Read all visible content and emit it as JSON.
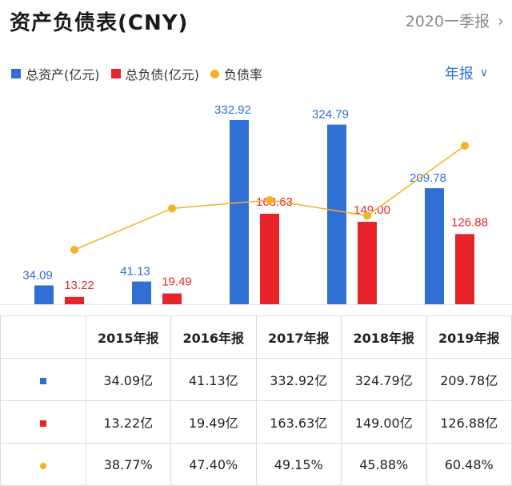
{
  "header": {
    "title": "资产负债表(CNY)",
    "period_label": "2020一季报"
  },
  "legend": {
    "assets": "总资产(亿元)",
    "liabilities": "总负债(亿元)",
    "ratio": "负债率"
  },
  "period_selector": "年报",
  "colors": {
    "assets": "#2f6fd6",
    "liabilities": "#e8242a",
    "ratio": "#f2b324"
  },
  "chart_data": {
    "type": "bar",
    "categories": [
      "2015年报",
      "2016年报",
      "2017年报",
      "2018年报",
      "2019年报"
    ],
    "series": [
      {
        "name": "总资产(亿元)",
        "values": [
          34.09,
          41.13,
          332.92,
          324.79,
          209.78
        ],
        "labels": [
          "34.09",
          "41.13",
          "332.92",
          "324.79",
          "209.78"
        ]
      },
      {
        "name": "总负债(亿元)",
        "values": [
          13.22,
          19.49,
          163.63,
          149.0,
          126.88
        ],
        "labels": [
          "13.22",
          "19.49",
          "163.63",
          "149.00",
          "126.88"
        ]
      },
      {
        "name": "负债率",
        "type": "line",
        "values": [
          38.77,
          47.4,
          49.15,
          45.88,
          60.48
        ]
      }
    ]
  },
  "table": {
    "headers": [
      "2015年报",
      "2016年报",
      "2017年报",
      "2018年报",
      "2019年报"
    ],
    "rows": [
      {
        "marker": "assets",
        "cells": [
          "34.09亿",
          "41.13亿",
          "332.92亿",
          "324.79亿",
          "209.78亿"
        ]
      },
      {
        "marker": "liabilities",
        "cells": [
          "13.22亿",
          "19.49亿",
          "163.63亿",
          "149.00亿",
          "126.88亿"
        ]
      },
      {
        "marker": "ratio",
        "cells": [
          "38.77%",
          "47.40%",
          "49.15%",
          "45.88%",
          "60.48%"
        ]
      }
    ]
  }
}
